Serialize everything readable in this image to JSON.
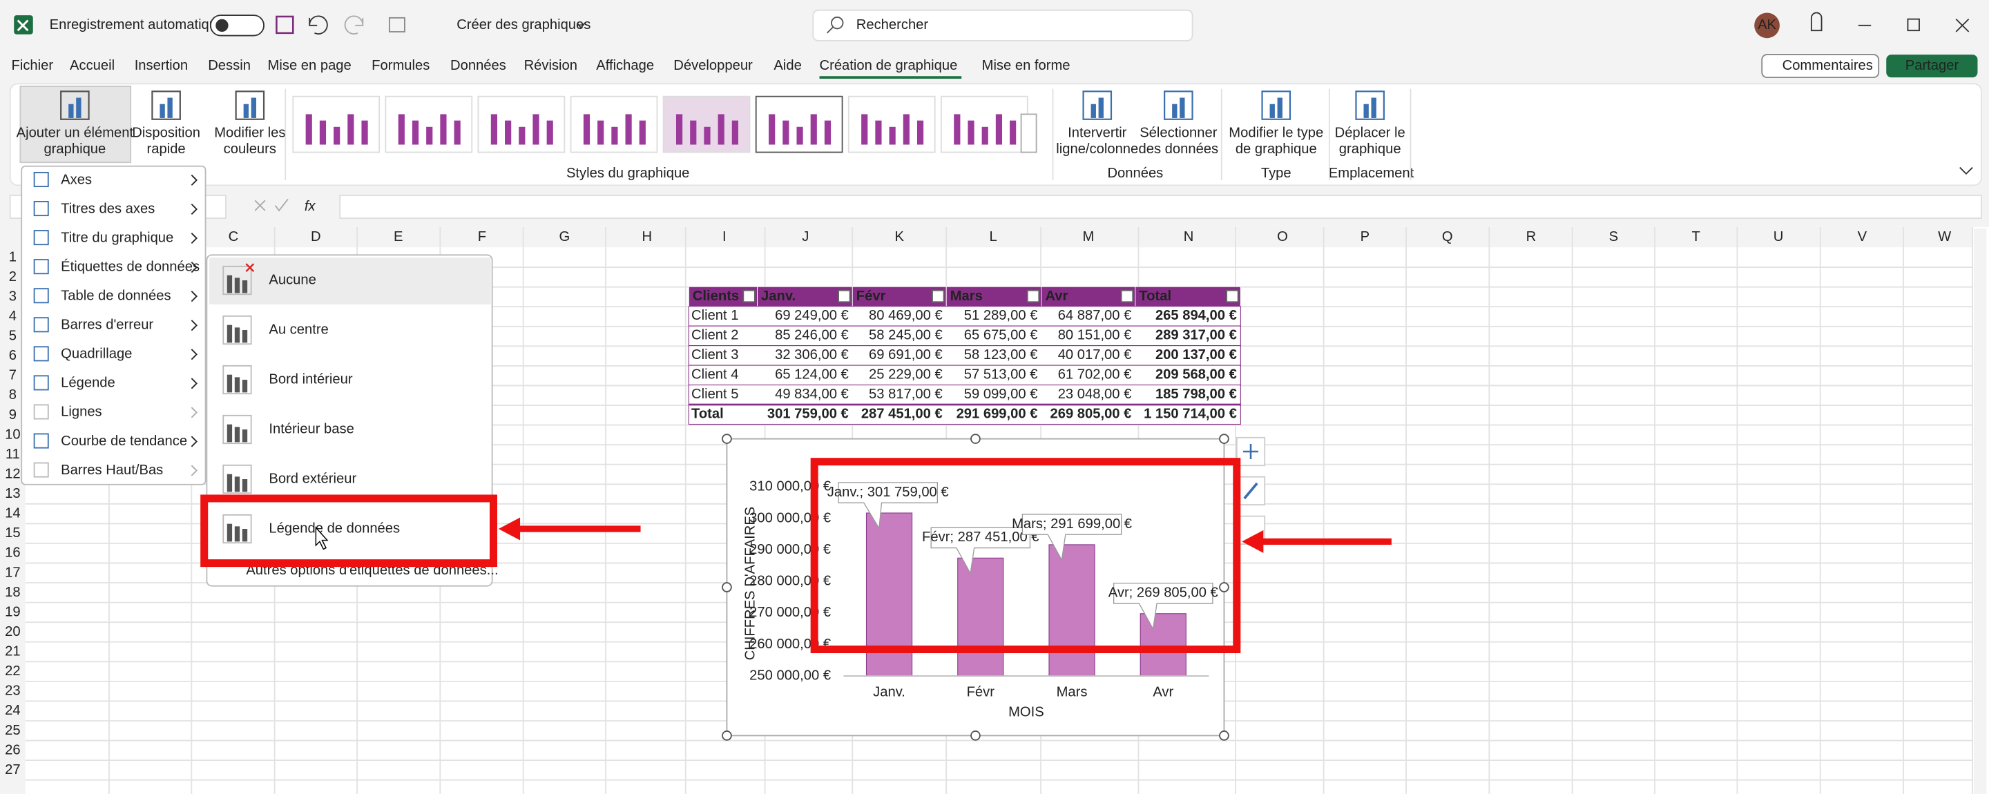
{
  "title_bar": {
    "autosave": "Enregistrement automatique",
    "document": "Créer des graphiques",
    "search": "Rechercher",
    "user": "AK"
  },
  "menu": {
    "tabs": [
      "Fichier",
      "Accueil",
      "Insertion",
      "Dessin",
      "Mise en page",
      "Formules",
      "Données",
      "Révision",
      "Affichage",
      "Développeur",
      "Aide",
      "Création de graphique",
      "Mise en forme"
    ],
    "active_tab": 11
  },
  "actions": {
    "comments": "Commentaires",
    "share": "Partager"
  },
  "ribbon": {
    "buttons": [
      {
        "lines": [
          "Ajouter un élément",
          "graphique"
        ]
      },
      {
        "lines": [
          "Disposition",
          "rapide"
        ]
      },
      {
        "lines": [
          "Modifier les",
          "couleurs"
        ]
      },
      {
        "lines": [
          "Intervertir",
          "ligne/colonne"
        ]
      },
      {
        "lines": [
          "Sélectionner",
          "des données"
        ]
      },
      {
        "lines": [
          "Modifier le type",
          "de graphique"
        ]
      },
      {
        "lines": [
          "Déplacer le",
          "graphique"
        ]
      }
    ],
    "groups": [
      "Styles du graphique",
      "Données",
      "Type",
      "Emplacement"
    ]
  },
  "formula_bar": {
    "fx": "fx"
  },
  "columns": [
    "C",
    "D",
    "E",
    "F",
    "G",
    "H",
    "I",
    "J",
    "K",
    "L",
    "M",
    "N",
    "O",
    "P",
    "Q",
    "R",
    "S",
    "T",
    "U",
    "V",
    "W"
  ],
  "rows": [
    1,
    2,
    3,
    4,
    5,
    6,
    7,
    8,
    9,
    10,
    11,
    12,
    13,
    14,
    15,
    16,
    17,
    18,
    19,
    20,
    21,
    22,
    23,
    24,
    25,
    26,
    27
  ],
  "dropdown": {
    "items": [
      {
        "label": "Axes",
        "enabled": true
      },
      {
        "label": "Titres des axes",
        "enabled": true
      },
      {
        "label": "Titre du graphique",
        "enabled": true
      },
      {
        "label": "Étiquettes de données",
        "enabled": true
      },
      {
        "label": "Table de données",
        "enabled": true
      },
      {
        "label": "Barres d'erreur",
        "enabled": true
      },
      {
        "label": "Quadrillage",
        "enabled": true
      },
      {
        "label": "Légende",
        "enabled": true
      },
      {
        "label": "Lignes",
        "enabled": false
      },
      {
        "label": "Courbe de tendance",
        "enabled": true
      },
      {
        "label": "Barres Haut/Bas",
        "enabled": false
      }
    ]
  },
  "submenu": {
    "items": [
      "Aucune",
      "Au centre",
      "Bord intérieur",
      "Intérieur base",
      "Bord extérieur",
      "Légende de données"
    ],
    "more": "Autres options d'étiquettes de données..."
  },
  "table": {
    "header": [
      "Clients",
      "Janv.",
      "Févr",
      "Mars",
      "Avr",
      "Total"
    ],
    "rows": [
      [
        "Client 1",
        "69 249,00 €",
        "80 469,00 €",
        "51 289,00 €",
        "64 887,00 €",
        "265 894,00 €"
      ],
      [
        "Client 2",
        "85 246,00 €",
        "58 245,00 €",
        "65 675,00 €",
        "80 151,00 €",
        "289 317,00 €"
      ],
      [
        "Client 3",
        "32 306,00 €",
        "69 691,00 €",
        "58 123,00 €",
        "40 017,00 €",
        "200 137,00 €"
      ],
      [
        "Client 4",
        "65 124,00 €",
        "25 229,00 €",
        "57 513,00 €",
        "61 702,00 €",
        "209 568,00 €"
      ],
      [
        "Client 5",
        "49 834,00 €",
        "53 817,00 €",
        "59 099,00 €",
        "23 048,00 €",
        "185 798,00 €"
      ],
      [
        "Total",
        "301 759,00 €",
        "287 451,00 €",
        "291 699,00 €",
        "269 805,00 €",
        "1 150 714,00 €"
      ]
    ]
  },
  "chart": {
    "type": "bar",
    "y_title": "CHIFFRES D'AFFAIRES",
    "x_title": "MOIS",
    "categories": [
      "Janv.",
      "Févr",
      "Mars",
      "Avr"
    ],
    "values": [
      301759,
      287451,
      291699,
      269805
    ],
    "value_labels": [
      "Janv.; 301 759,00 €",
      "Févr; 287 451,00 €",
      "Mars; 291 699,00 €",
      "Avr; 269 805,00 €"
    ],
    "color": "#c77dc0",
    "ylim": [
      250000,
      310000
    ],
    "yticks": [
      {
        "value": 250000,
        "label": "250 000,00 €"
      },
      {
        "value": 260000,
        "label": "260 000,00 €"
      },
      {
        "value": 270000,
        "label": "270 000,00 €"
      },
      {
        "value": 280000,
        "label": "280 000,00 €"
      },
      {
        "value": 290000,
        "label": "290 000,00 €"
      },
      {
        "value": 300000,
        "label": "300 000,00 €"
      },
      {
        "value": 310000,
        "label": "310 000,00 €"
      }
    ]
  }
}
